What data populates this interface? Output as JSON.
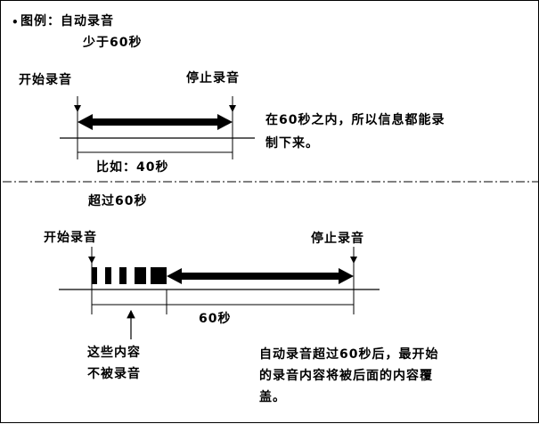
{
  "legend": {
    "bullet": "•",
    "title": "图例：自动录音",
    "subtitle": "少于60秒"
  },
  "case_short": {
    "start_label": "开始录音",
    "stop_label": "停止录音",
    "note_lines": [
      "在60秒之内，所以信息都能录",
      "制下来。"
    ],
    "duration_label": "比如：40秒"
  },
  "case_long": {
    "title": "超过60秒",
    "start_label": "开始录音",
    "stop_label": "停止录音",
    "duration_label": "60秒",
    "lost_lines": [
      "这些内容",
      "不被录音"
    ],
    "note_lines": [
      "自动录音超过60秒后，最开始",
      "的录音内容将被后面的内容覆",
      "盖。"
    ]
  }
}
